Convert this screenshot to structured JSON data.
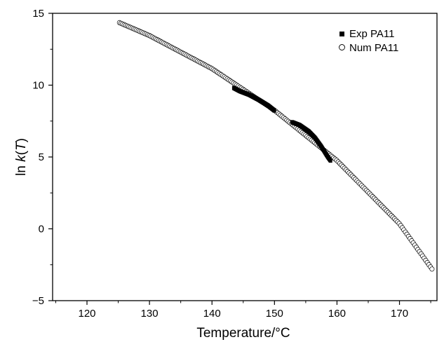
{
  "chart_data": {
    "type": "scatter",
    "xlabel": "Temperature/°C",
    "ylabel_prefix": "ln ",
    "ylabel_italic": "k",
    "ylabel_paren_open": "(",
    "ylabel_var": "T",
    "ylabel_paren_close": ")",
    "xlim": [
      114.5,
      176
    ],
    "ylim": [
      -5,
      15
    ],
    "xticks": [
      120,
      130,
      140,
      150,
      160,
      170
    ],
    "yticks": [
      -5,
      0,
      5,
      10,
      15
    ],
    "xtick_labels": [
      "120",
      "130",
      "140",
      "150",
      "160",
      "170"
    ],
    "ytick_labels": [
      "−5",
      "0",
      "5",
      "10",
      "15"
    ],
    "grid": false,
    "legend_position": "top-right",
    "legend": [
      {
        "label": "Exp PA11",
        "marker": "filled-square"
      },
      {
        "label": "Num PA11",
        "marker": "open-circle"
      }
    ],
    "series": [
      {
        "name": "Num PA11",
        "marker": "open-circle",
        "x_range": [
          125.2,
          175.2
        ],
        "x_step": 0.25,
        "curve_points": [
          [
            125.2,
            14.35
          ],
          [
            130,
            13.45
          ],
          [
            140,
            11.15
          ],
          [
            150,
            8.25
          ],
          [
            160,
            4.75
          ],
          [
            170,
            0.35
          ],
          [
            175.2,
            -2.8
          ]
        ]
      },
      {
        "name": "Exp PA11",
        "marker": "filled-square",
        "segments": [
          [
            [
              143.5,
              9.78
            ],
            [
              144.5,
              9.55
            ],
            [
              146,
              9.3
            ],
            [
              147.5,
              8.95
            ],
            [
              149.0,
              8.55
            ],
            [
              150.0,
              8.2
            ]
          ],
          [
            [
              152.8,
              7.4
            ],
            [
              154.0,
              7.2
            ],
            [
              155.5,
              6.75
            ],
            [
              156.5,
              6.3
            ],
            [
              157.5,
              5.7
            ],
            [
              158.5,
              5.0
            ],
            [
              159.0,
              4.7
            ]
          ]
        ]
      }
    ]
  }
}
